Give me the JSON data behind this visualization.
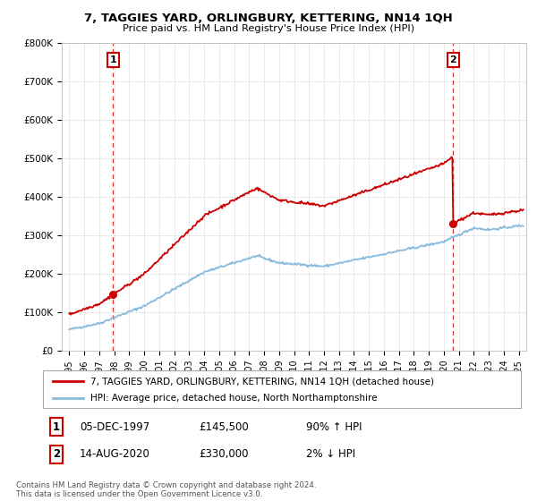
{
  "title": "7, TAGGIES YARD, ORLINGBURY, KETTERING, NN14 1QH",
  "subtitle": "Price paid vs. HM Land Registry's House Price Index (HPI)",
  "ylabel_ticks": [
    "£0",
    "£100K",
    "£200K",
    "£300K",
    "£400K",
    "£500K",
    "£600K",
    "£700K",
    "£800K"
  ],
  "ytick_values": [
    0,
    100000,
    200000,
    300000,
    400000,
    500000,
    600000,
    700000,
    800000
  ],
  "ylim": [
    0,
    790000
  ],
  "xlim_start": 1994.5,
  "xlim_end": 2025.5,
  "xtick_years": [
    1995,
    1996,
    1997,
    1998,
    1999,
    2000,
    2001,
    2002,
    2003,
    2004,
    2005,
    2006,
    2007,
    2008,
    2009,
    2010,
    2011,
    2012,
    2013,
    2014,
    2015,
    2016,
    2017,
    2018,
    2019,
    2020,
    2021,
    2022,
    2023,
    2024,
    2025
  ],
  "sale1_x": 1997.92,
  "sale1_y": 145500,
  "sale2_x": 2020.62,
  "sale2_y": 330000,
  "red_color": "#cc0000",
  "blue_color": "#88bbdd",
  "legend_line1": "7, TAGGIES YARD, ORLINGBURY, KETTERING, NN14 1QH (detached house)",
  "legend_line2": "HPI: Average price, detached house, North Northamptonshire",
  "table_row1_num": "1",
  "table_row1_date": "05-DEC-1997",
  "table_row1_price": "£145,500",
  "table_row1_hpi": "90% ↑ HPI",
  "table_row2_num": "2",
  "table_row2_date": "14-AUG-2020",
  "table_row2_price": "£330,000",
  "table_row2_hpi": "2% ↓ HPI",
  "footer": "Contains HM Land Registry data © Crown copyright and database right 2024.\nThis data is licensed under the Open Government Licence v3.0.",
  "background_color": "#ffffff",
  "grid_color": "#e0e0e0"
}
